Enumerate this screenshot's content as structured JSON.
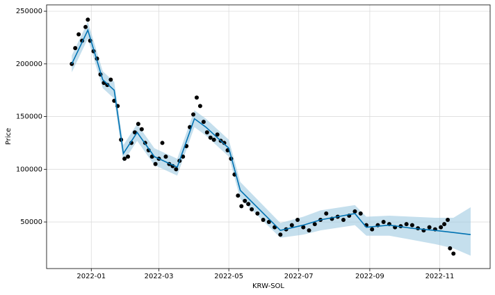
{
  "chart_data": {
    "type": "forecast",
    "x_label": "KRW-SOL",
    "y_label": "Price",
    "grid": true,
    "xlim": [
      -39,
      348
    ],
    "ylim": [
      5800,
      256000
    ],
    "xticks": [
      {
        "value": 0,
        "label": "2022-01"
      },
      {
        "value": 59,
        "label": "2022-03"
      },
      {
        "value": 120,
        "label": "2022-05"
      },
      {
        "value": 181,
        "label": "2022-07"
      },
      {
        "value": 243,
        "label": "2022-09"
      },
      {
        "value": 304,
        "label": "2022-11"
      }
    ],
    "yticks": [
      50000,
      100000,
      150000,
      200000,
      250000
    ],
    "observed": {
      "color": "#000000",
      "x": [
        -17,
        -14,
        -11,
        -8,
        -5,
        -3,
        -1,
        2,
        5,
        8,
        11,
        14,
        17,
        20,
        23,
        26,
        29,
        32,
        35,
        38,
        41,
        44,
        47,
        50,
        53,
        56,
        59,
        62,
        65,
        68,
        71,
        74,
        77,
        80,
        83,
        86,
        89,
        92,
        95,
        98,
        101,
        104,
        107,
        110,
        113,
        116,
        119,
        122,
        125,
        128,
        131,
        134,
        137,
        140,
        145,
        150,
        155,
        160,
        165,
        170,
        175,
        180,
        185,
        190,
        195,
        200,
        205,
        210,
        215,
        220,
        225,
        230,
        235,
        240,
        245,
        250,
        255,
        260,
        265,
        270,
        275,
        280,
        285,
        290,
        295,
        300,
        305,
        308,
        311,
        313,
        316
      ],
      "values": [
        200000,
        215000,
        228000,
        222000,
        235000,
        242000,
        222000,
        212000,
        205000,
        190000,
        182000,
        180000,
        185000,
        165000,
        160000,
        128000,
        110000,
        112000,
        125000,
        135000,
        143000,
        138000,
        125000,
        118000,
        112000,
        105000,
        110000,
        125000,
        112000,
        105000,
        103000,
        100000,
        108000,
        112000,
        122000,
        140000,
        152000,
        168000,
        160000,
        145000,
        135000,
        130000,
        128000,
        133000,
        127000,
        125000,
        118000,
        110000,
        95000,
        75000,
        65000,
        70000,
        67000,
        62000,
        58000,
        52000,
        50000,
        45000,
        38000,
        43000,
        47000,
        52000,
        45000,
        42000,
        48000,
        52000,
        58000,
        53000,
        55000,
        52000,
        56000,
        60000,
        58000,
        47000,
        43000,
        47000,
        50000,
        48000,
        45000,
        46000,
        48000,
        47000,
        44000,
        42000,
        45000,
        43000,
        45000,
        48000,
        52000,
        25000,
        20000
      ]
    },
    "forecast": {
      "color": "#0072b2",
      "band_color": "#9ecae1",
      "x": [
        -17,
        -3,
        10,
        20,
        28,
        40,
        55,
        75,
        90,
        100,
        120,
        130,
        165,
        185,
        200,
        230,
        240,
        260,
        280,
        300,
        316,
        331
      ],
      "values": [
        200000,
        232000,
        185000,
        175000,
        115000,
        135000,
        112000,
        102000,
        148000,
        140000,
        120000,
        80000,
        42000,
        47000,
        52000,
        58000,
        45000,
        47000,
        44000,
        42000,
        40000,
        38000
      ],
      "lower": [
        192000,
        224000,
        177000,
        167000,
        107000,
        127000,
        104000,
        94000,
        140000,
        132000,
        112000,
        72000,
        35000,
        38000,
        42000,
        47000,
        37000,
        37000,
        33000,
        29000,
        25000,
        18000
      ],
      "upper": [
        208000,
        240000,
        193000,
        183000,
        123000,
        143000,
        120000,
        110000,
        156000,
        148000,
        128000,
        88000,
        49000,
        55000,
        61000,
        66000,
        55000,
        56000,
        55000,
        54000,
        54000,
        64000
      ]
    }
  }
}
